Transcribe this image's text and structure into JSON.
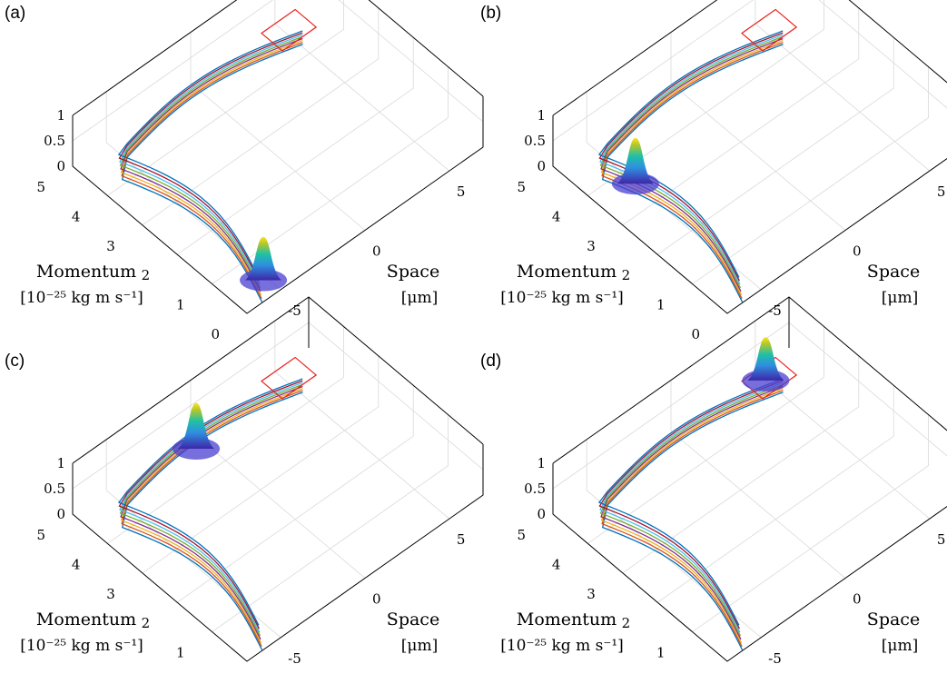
{
  "figure": {
    "panel_labels": [
      "(a)",
      "(b)",
      "(c)",
      "(d)"
    ]
  },
  "chart_data": [
    {
      "type": "surface3d",
      "panel": "(a)",
      "xlabel": "Momentum",
      "xunit": "[10^{-25} kg m s^{-1}]",
      "ylabel": "Space",
      "yunit": "[μm]",
      "x_ticks": [
        "0",
        "1",
        "2",
        "3",
        "4",
        "5"
      ],
      "y_ticks": [
        "-5",
        "0",
        "5"
      ],
      "z_ticks": [
        "0",
        "0.5",
        "1"
      ],
      "xlim": [
        0,
        5
      ],
      "ylim": [
        -7,
        7
      ],
      "zlim": [
        0,
        1
      ],
      "wavepacket": {
        "momentum": 0.4,
        "space": -5.2,
        "peak": 0.85
      },
      "trajectory_lines": 8,
      "roi": {
        "momentum": [
          4.4,
          5.0
        ],
        "space": [
          4.2,
          6.2
        ]
      }
    },
    {
      "type": "surface3d",
      "panel": "(b)",
      "xlabel": "Momentum",
      "xunit": "[10^{-25} kg m s^{-1}]",
      "ylabel": "Space",
      "yunit": "[μm]",
      "x_ticks": [
        "0",
        "1",
        "2",
        "3",
        "4",
        "5"
      ],
      "y_ticks": [
        "-5",
        "0",
        "5"
      ],
      "z_ticks": [
        "0",
        "0.5",
        "1"
      ],
      "xlim": [
        0,
        5
      ],
      "ylim": [
        -7,
        7
      ],
      "zlim": [
        0,
        1
      ],
      "wavepacket": {
        "momentum": 3.6,
        "space": -5.0,
        "peak": 0.9
      },
      "trajectory_lines": 8,
      "roi": {
        "momentum": [
          4.4,
          5.0
        ],
        "space": [
          4.2,
          6.2
        ]
      }
    },
    {
      "type": "surface3d",
      "panel": "(c)",
      "xlabel": "Momentum",
      "xunit": "[10^{-25} kg m s^{-1}]",
      "ylabel": "Space",
      "yunit": "[μm]",
      "x_ticks": [
        "0",
        "1",
        "2",
        "3",
        "4",
        "5"
      ],
      "y_ticks": [
        "-5",
        "0",
        "5"
      ],
      "z_ticks": [
        "0",
        "0.5",
        "1"
      ],
      "xlim": [
        0,
        5
      ],
      "ylim": [
        -7,
        7
      ],
      "zlim": [
        0,
        1
      ],
      "wavepacket": {
        "momentum": 4.6,
        "space": -0.5,
        "peak": 0.9
      },
      "trajectory_lines": 8,
      "roi": {
        "momentum": [
          4.4,
          5.0
        ],
        "space": [
          4.2,
          6.2
        ]
      }
    },
    {
      "type": "surface3d",
      "panel": "(d)",
      "xlabel": "Momentum",
      "xunit": "[10^{-25} kg m s^{-1}]",
      "ylabel": "Space",
      "yunit": "[μm]",
      "x_ticks": [
        "0",
        "1",
        "2",
        "3",
        "4",
        "5"
      ],
      "y_ticks": [
        "-5",
        "0",
        "5"
      ],
      "z_ticks": [
        "0",
        "0.5",
        "1"
      ],
      "xlim": [
        0,
        5
      ],
      "ylim": [
        -7,
        7
      ],
      "zlim": [
        0,
        1
      ],
      "wavepacket": {
        "momentum": 4.7,
        "space": 5.0,
        "peak": 0.85
      },
      "trajectory_lines": 8,
      "roi": {
        "momentum": [
          4.4,
          5.0
        ],
        "space": [
          4.2,
          6.2
        ]
      }
    }
  ]
}
